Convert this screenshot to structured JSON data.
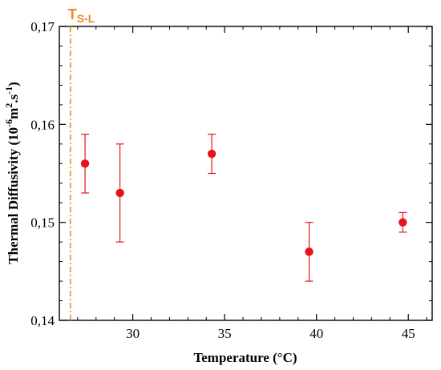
{
  "chart_data": {
    "type": "scatter",
    "xlabel": "Temperature (°C)",
    "ylabel": "Thermal Diffusivity (10",
    "ylabel_sup1": "-6",
    "ylabel_mid": "m",
    "ylabel_sup2": "2",
    "ylabel_mid2": ".s",
    "ylabel_sup3": "-1",
    "ylabel_end": ")",
    "xlim": [
      26.0,
      46.3
    ],
    "ylim": [
      0.14,
      0.17
    ],
    "x_ticks": [
      30,
      35,
      40,
      45
    ],
    "x_tick_labels": [
      "30",
      "35",
      "40",
      "45"
    ],
    "y_ticks": [
      0.14,
      0.15,
      0.16,
      0.17
    ],
    "y_tick_labels": [
      "0,14",
      "0,15",
      "0,16",
      "0,17"
    ],
    "grid": false,
    "series": [
      {
        "color": "#e8141c",
        "x": [
          27.4,
          29.3,
          34.3,
          39.6,
          44.7
        ],
        "y": [
          0.156,
          0.153,
          0.157,
          0.147,
          0.15
        ],
        "yerr_low": [
          0.153,
          0.148,
          0.155,
          0.144,
          0.149
        ],
        "yerr_high": [
          0.159,
          0.158,
          0.159,
          0.15,
          0.151
        ]
      }
    ],
    "reference_line": {
      "x": 26.6,
      "label_main": "T",
      "label_sub": "S-L",
      "color": "#f08a1c"
    }
  }
}
